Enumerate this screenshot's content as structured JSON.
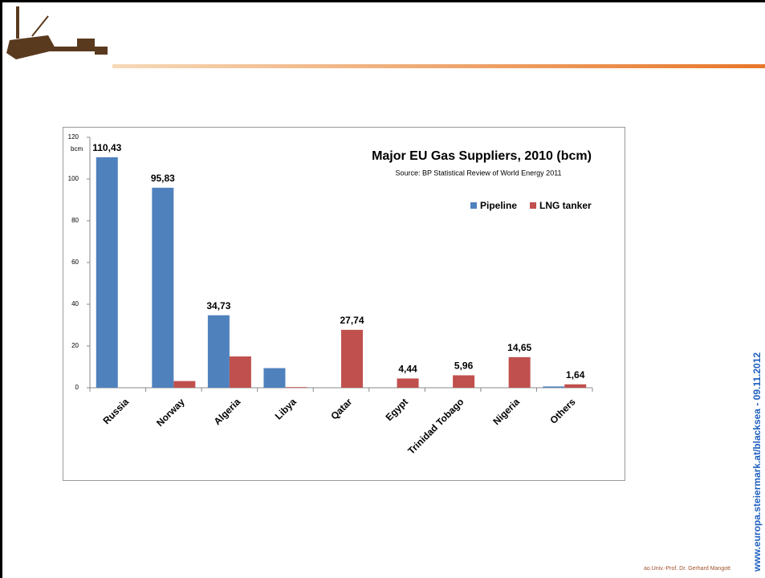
{
  "chart_data": {
    "type": "bar",
    "title": "Major EU Gas Suppliers, 2010 (bcm)",
    "subtitle": "Source: BP Statistical Review of World Energy 2011",
    "y_label": "bcm",
    "categories": [
      "Russia",
      "Norway",
      "Algeria",
      "Libya",
      "Qatar",
      "Egypt",
      "Trinidad Tobago",
      "Nigeria",
      "Others"
    ],
    "series": [
      {
        "name": "Pipeline",
        "color": "#4f81bd",
        "values": [
          110.43,
          95.83,
          34.73,
          9.4,
          0,
          0,
          0,
          0,
          0.6
        ],
        "value_labels": [
          "110,43",
          "95,83",
          "34,73",
          null,
          null,
          null,
          null,
          null,
          null
        ]
      },
      {
        "name": "LNG tanker",
        "color": "#c0504d",
        "values": [
          0,
          3.2,
          15,
          0.3,
          27.74,
          4.44,
          5.96,
          14.65,
          1.64
        ],
        "value_labels": [
          null,
          null,
          null,
          null,
          "27,74",
          "4,44",
          "5,96",
          "14,65",
          "1,64"
        ]
      }
    ],
    "ylim": [
      0,
      120
    ],
    "yticks": [
      0,
      20,
      40,
      60,
      80,
      100,
      120
    ],
    "grid": false,
    "legend": "top-right"
  },
  "slide": {
    "author": "ao.Univ.-Prof. Dr. Gerhard Mangott",
    "url": "www.europa.steiermark.at/blacksea - 09.11.2012"
  }
}
